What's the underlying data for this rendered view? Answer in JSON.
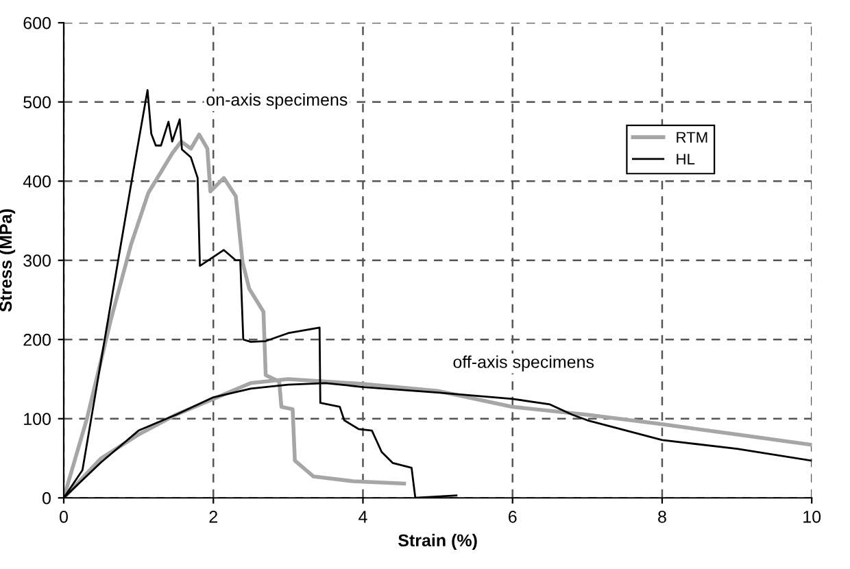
{
  "chart_data": {
    "type": "line",
    "xlabel": "Strain (%)",
    "ylabel": "Stress (MPa)",
    "xlim": [
      0,
      10
    ],
    "xticks": [
      0,
      2,
      4,
      6,
      8,
      10
    ],
    "ylim": [
      0,
      600
    ],
    "yticks": [
      0,
      100,
      200,
      300,
      400,
      500,
      600
    ],
    "grid": true,
    "legend": "top right",
    "line_style": "solid",
    "marker": "none",
    "series": [
      {
        "name": "RTM",
        "color": "#a6a6a6",
        "x": [
          0,
          0.31,
          0.63,
          0.9,
          1.13,
          1.45,
          1.57,
          1.7,
          1.81,
          1.92,
          1.96,
          2.14,
          2.3,
          2.39,
          2.48,
          2.67,
          2.7,
          2.88,
          2.91,
          3.06,
          3.09,
          3.34,
          3.87,
          4.55
        ],
        "values": [
          0,
          100,
          225,
          320,
          385,
          435,
          450,
          441,
          459,
          441,
          387,
          404,
          381,
          298,
          264,
          235,
          155,
          147,
          115,
          112,
          47,
          27,
          21,
          18
        ]
      },
      {
        "name": "HL",
        "color": "#000000",
        "x": [
          0,
          0.25,
          0.94,
          1.12,
          1.17,
          1.23,
          1.3,
          1.4,
          1.45,
          1.55,
          1.58,
          1.7,
          1.79,
          1.82,
          2.14,
          2.3,
          2.36,
          2.4,
          2.5,
          2.7,
          3.0,
          3.42,
          3.43,
          3.69,
          3.75,
          3.94,
          4.12,
          4.25,
          4.4,
          4.65,
          4.7,
          5.25
        ],
        "values": [
          0,
          35,
          418,
          515,
          460,
          445,
          445,
          475,
          450,
          478,
          440,
          430,
          404,
          293,
          313,
          300,
          300,
          200,
          197,
          198,
          208,
          215,
          120,
          115,
          98,
          87,
          85,
          58,
          44,
          38,
          0,
          3
        ]
      },
      {
        "color": "#a6a6a6",
        "x": [
          0,
          0.5,
          1,
          1.5,
          2,
          2.5,
          3,
          4,
          5,
          6,
          7,
          8,
          9,
          10
        ],
        "values": [
          0,
          50,
          80,
          105,
          125,
          145,
          150,
          144,
          135,
          115,
          105,
          93,
          80,
          67
        ]
      },
      {
        "color": "#000000",
        "x": [
          0,
          0.5,
          1,
          1.5,
          2,
          2.5,
          3,
          3.5,
          4,
          5,
          6,
          6.5,
          6.8,
          7,
          8,
          9,
          10
        ],
        "values": [
          0,
          45,
          85,
          105,
          127,
          138,
          143,
          145,
          140,
          133,
          125,
          118,
          105,
          98,
          73,
          62,
          47
        ]
      }
    ],
    "annotations": [
      "on-axis specimens",
      "off-axis specimens"
    ]
  }
}
